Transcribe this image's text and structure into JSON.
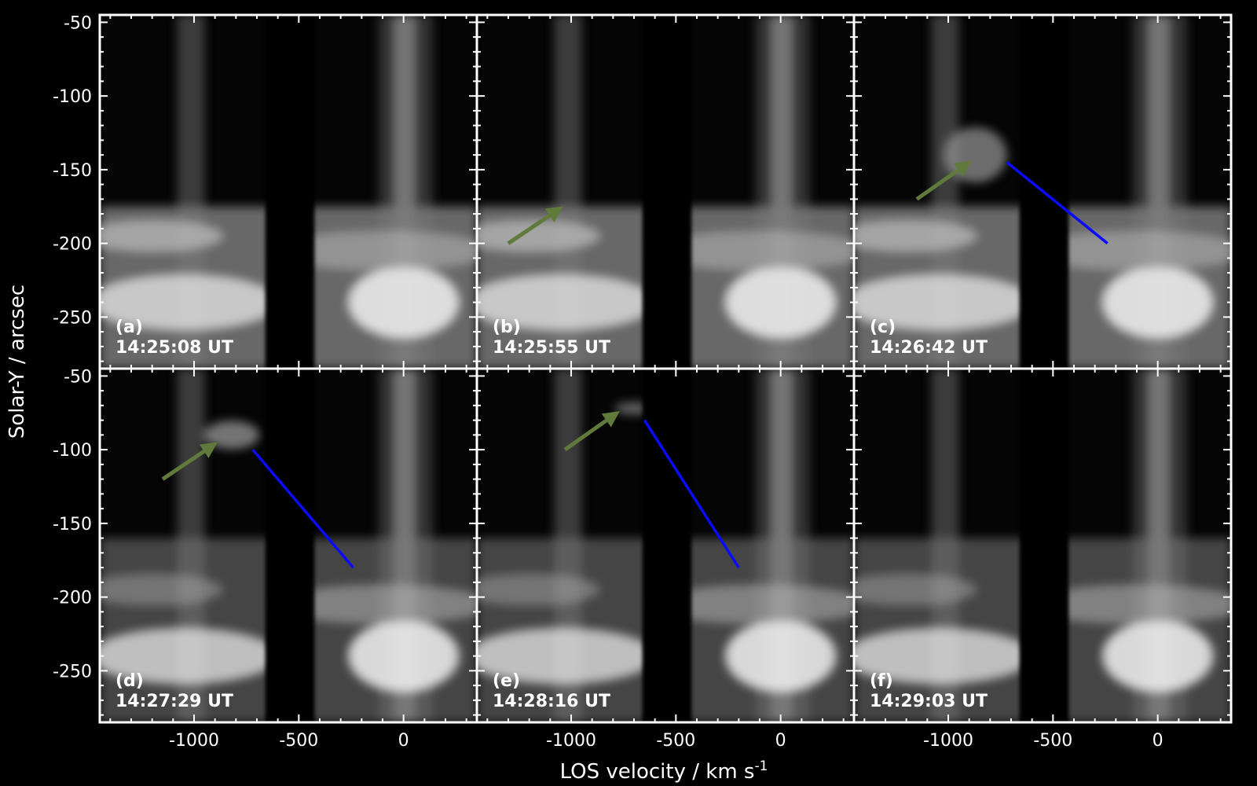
{
  "figure": {
    "ylabel": "Solar-Y / arcsec",
    "xlabel_main": "LOS velocity / km s",
    "xlabel_sup": "-1"
  },
  "colors": {
    "background": "#000000",
    "frame": "#ffffff",
    "arrow": "#5f7a3a",
    "fit_line": "#0a0aff"
  },
  "chart_data": {
    "type": "heatmap",
    "colormap": "grayscale",
    "xlim": [
      -1450,
      350
    ],
    "ylim": [
      -285,
      -45
    ],
    "x_ticks": [
      -1000,
      -500,
      0
    ],
    "x_tick_labels": [
      "-1000",
      "-500",
      "0"
    ],
    "y_ticks": [
      -50,
      -100,
      -150,
      -200,
      -250
    ],
    "y_tick_labels": [
      "-50",
      "-100",
      "-150",
      "-200",
      "-250"
    ],
    "grid": false,
    "panels": [
      {
        "label": "(a)",
        "time": "14:25:08 UT",
        "arrow": null,
        "line": null
      },
      {
        "label": "(b)",
        "time": "14:25:55 UT",
        "arrow": {
          "from": [
            -1300,
            -200
          ],
          "to": [
            -1070,
            -178
          ]
        },
        "line": null
      },
      {
        "label": "(c)",
        "time": "14:26:42 UT",
        "arrow": {
          "from": [
            -1150,
            -170
          ],
          "to": [
            -920,
            -147
          ]
        },
        "line": {
          "from": [
            -720,
            -145
          ],
          "to": [
            -240,
            -200
          ]
        }
      },
      {
        "label": "(d)",
        "time": "14:27:29 UT",
        "arrow": {
          "from": [
            -1150,
            -120
          ],
          "to": [
            -920,
            -98
          ]
        },
        "line": {
          "from": [
            -720,
            -100
          ],
          "to": [
            -240,
            -180
          ]
        }
      },
      {
        "label": "(e)",
        "time": "14:28:16 UT",
        "arrow": {
          "from": [
            -1030,
            -100
          ],
          "to": [
            -800,
            -77
          ]
        },
        "line": {
          "from": [
            -650,
            -80
          ],
          "to": [
            -200,
            -180
          ]
        }
      },
      {
        "label": "(f)",
        "time": "14:29:03 UT",
        "arrow": null,
        "line": null
      }
    ]
  }
}
